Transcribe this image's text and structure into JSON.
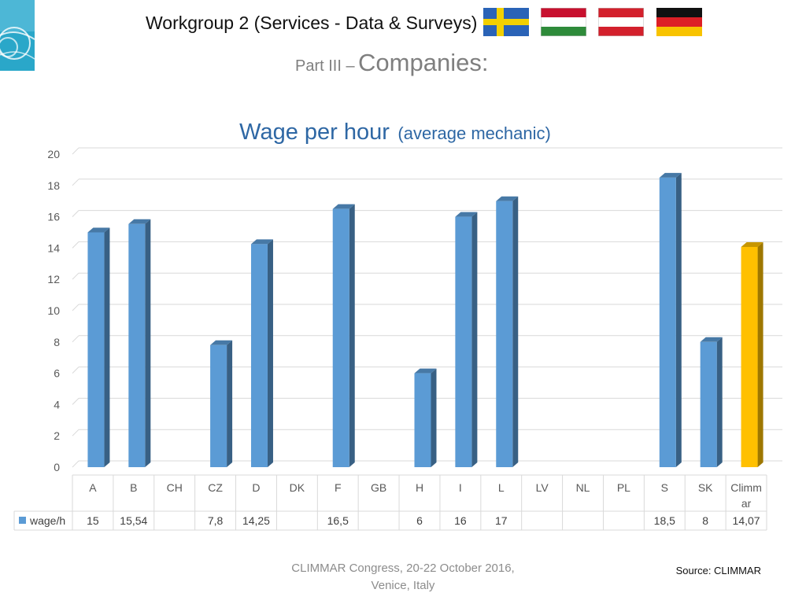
{
  "header": {
    "title": "Workgroup 2 (Services - Data & Surveys)",
    "subtitle_small": "Part III –",
    "subtitle_big": "Companies:"
  },
  "flags": [
    {
      "name": "sweden-flag",
      "colors": [
        "#2a63b7",
        "#f2d000"
      ]
    },
    {
      "name": "hungary-flag",
      "colors": [
        "#c8102e",
        "#ffffff",
        "#2e8b3a"
      ]
    },
    {
      "name": "austria-flag",
      "colors": [
        "#d3202c",
        "#ffffff",
        "#d3202c"
      ]
    },
    {
      "name": "germany-flag",
      "colors": [
        "#111111",
        "#dd1f26",
        "#f8c300"
      ]
    }
  ],
  "chart_data": {
    "type": "bar",
    "title": "Wage per hour",
    "title_suffix": "(average mechanic)",
    "categories": [
      "A",
      "B",
      "CH",
      "CZ",
      "D",
      "DK",
      "F",
      "GB",
      "H",
      "I",
      "L",
      "LV",
      "NL",
      "PL",
      "S",
      "SK",
      "Climmar"
    ],
    "series": [
      {
        "name": "wage/h",
        "values": [
          15,
          15.54,
          null,
          7.8,
          14.25,
          null,
          16.5,
          null,
          6,
          16,
          17,
          null,
          null,
          null,
          18.5,
          8,
          14.07
        ],
        "value_labels": [
          "15",
          "15,54",
          "",
          "7,8",
          "14,25",
          "",
          "16,5",
          "",
          "6",
          "16",
          "17",
          "",
          "",
          "",
          "18,5",
          "8",
          "14,07"
        ]
      }
    ],
    "highlight_category": "Climmar",
    "colors": {
      "bar": "#5b9bd5",
      "highlight": "#ffc000"
    },
    "ylim": [
      0,
      20
    ],
    "yticks": [
      0,
      2,
      4,
      6,
      8,
      10,
      12,
      14,
      16,
      18,
      20
    ],
    "grid": true,
    "legend": "data-table"
  },
  "footer": {
    "event_line1": "CLIMMAR Congress, 20-22 October 2016,",
    "event_line2": "Venice, Italy",
    "source": "Source: CLIMMAR"
  }
}
